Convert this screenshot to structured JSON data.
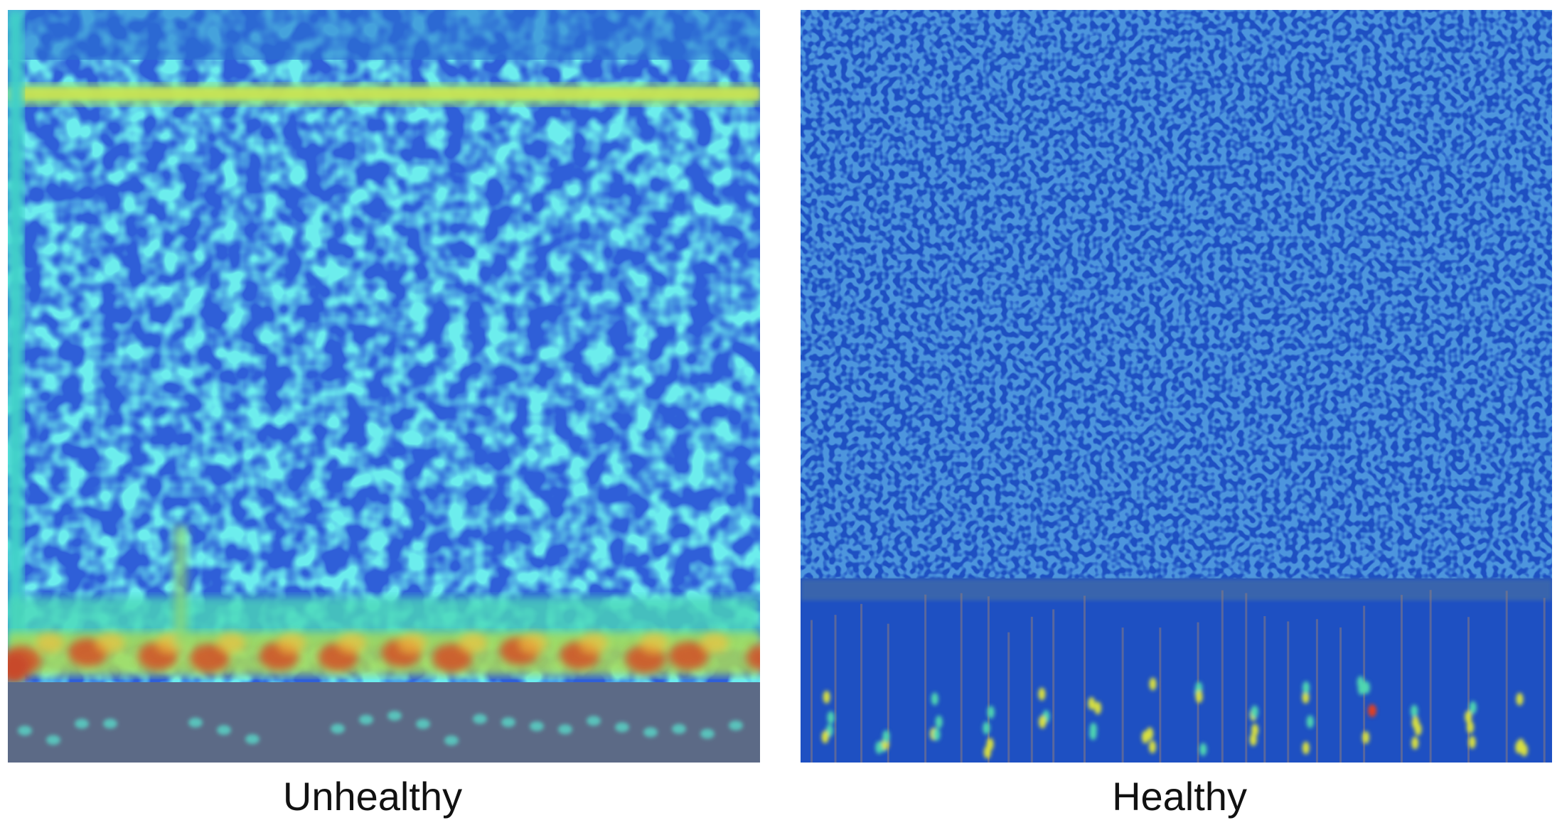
{
  "panels": [
    {
      "caption": "Unhealthy"
    },
    {
      "caption": "Healthy"
    }
  ]
}
